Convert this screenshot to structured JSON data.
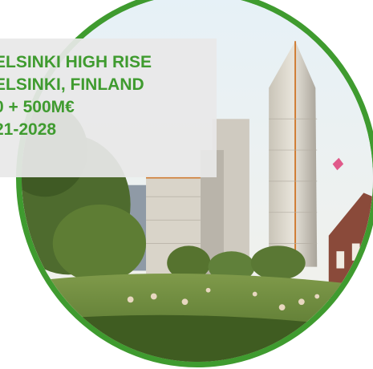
{
  "caption": {
    "lines": [
      "ELSINKI HIGH RISE",
      "ELSINKI, FINLAND",
      "0 + 500M€",
      "21-2028"
    ]
  },
  "colors": {
    "accent_green": "#3f9b2f",
    "label_background": "#e8e8e8"
  }
}
